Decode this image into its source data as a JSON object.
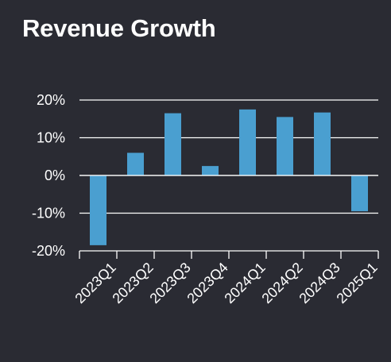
{
  "title": "Revenue Growth",
  "chart_data": {
    "type": "bar",
    "title": "Revenue Growth",
    "categories": [
      "2023Q1",
      "2023Q2",
      "2023Q3",
      "2023Q4",
      "2024Q1",
      "2024Q2",
      "2024Q3",
      "2025Q1"
    ],
    "values": [
      -18.5,
      6.0,
      16.5,
      2.5,
      17.5,
      15.5,
      16.7,
      -9.5
    ],
    "unit": "%",
    "ylim": [
      -20,
      20
    ],
    "yticks": [
      -20,
      -10,
      0,
      10,
      20
    ],
    "ytick_labels": [
      "-20%",
      "-10%",
      "0%",
      "10%",
      "20%"
    ],
    "xlabel": "",
    "ylabel": "",
    "grid": "horizontal",
    "colors": {
      "bar": "#4a9fd0",
      "grid": "#ffffff",
      "background": "#2a2b33",
      "text": "#ffffff"
    }
  }
}
